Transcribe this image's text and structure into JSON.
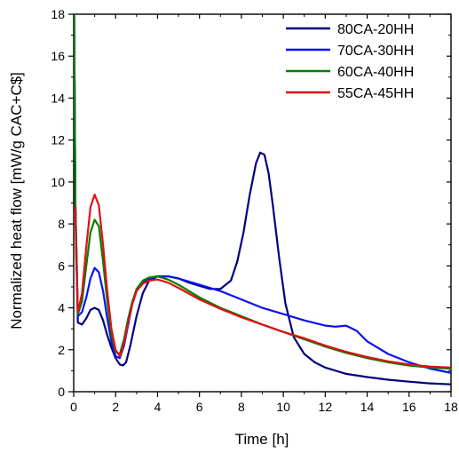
{
  "chart_data": {
    "type": "line",
    "title": "",
    "xlabel": "Time [h]",
    "ylabel": "Normalized heat flow [mW/g CAC+C$]",
    "xlim": [
      0,
      18
    ],
    "ylim": [
      0,
      18
    ],
    "xticks": [
      "0",
      "2",
      "4",
      "6",
      "8",
      "10",
      "12",
      "14",
      "16",
      "18"
    ],
    "yticks": [
      "0",
      "2",
      "4",
      "6",
      "8",
      "10",
      "12",
      "14",
      "16",
      "18"
    ],
    "grid": false,
    "legend_position": "top-right",
    "series": [
      {
        "name": "80CA-20HH",
        "color": "#00007f",
        "x": [
          0.02,
          0.08,
          0.2,
          0.4,
          0.6,
          0.8,
          1.0,
          1.2,
          1.4,
          1.6,
          1.8,
          2.0,
          2.2,
          2.35,
          2.5,
          2.7,
          3.0,
          3.3,
          3.6,
          4.0,
          4.5,
          5.0,
          5.5,
          6.0,
          6.5,
          7.0,
          7.5,
          7.8,
          8.1,
          8.4,
          8.7,
          8.9,
          9.1,
          9.3,
          9.5,
          9.8,
          10.1,
          10.5,
          11.0,
          11.5,
          12.0,
          13.0,
          14.0,
          15.0,
          16.0,
          17.0,
          18.0
        ],
        "y": [
          18.0,
          9.0,
          3.3,
          3.2,
          3.5,
          3.9,
          4.0,
          3.9,
          3.4,
          2.7,
          2.1,
          1.6,
          1.3,
          1.25,
          1.4,
          2.2,
          3.6,
          4.7,
          5.3,
          5.5,
          5.5,
          5.4,
          5.2,
          5.05,
          4.9,
          4.9,
          5.3,
          6.2,
          7.6,
          9.4,
          10.9,
          11.4,
          11.3,
          10.4,
          8.9,
          6.4,
          4.2,
          2.6,
          1.8,
          1.4,
          1.15,
          0.85,
          0.7,
          0.57,
          0.48,
          0.4,
          0.35
        ]
      },
      {
        "name": "70CA-30HH",
        "color": "#0a12f0",
        "x": [
          0.02,
          0.08,
          0.2,
          0.4,
          0.6,
          0.8,
          1.0,
          1.2,
          1.4,
          1.6,
          1.8,
          2.0,
          2.2,
          2.4,
          2.6,
          2.8,
          3.0,
          3.3,
          3.6,
          4.0,
          4.5,
          5.0,
          6.0,
          7.0,
          8.0,
          9.0,
          10.0,
          11.0,
          12.0,
          12.5,
          13.0,
          13.5,
          14.0,
          15.0,
          16.0,
          17.0,
          18.0
        ],
        "y": [
          18.0,
          9.0,
          3.6,
          3.8,
          4.5,
          5.4,
          5.9,
          5.7,
          4.8,
          3.5,
          2.4,
          1.7,
          1.6,
          2.2,
          3.2,
          4.2,
          4.8,
          5.2,
          5.4,
          5.5,
          5.5,
          5.4,
          5.1,
          4.8,
          4.4,
          4.0,
          3.7,
          3.4,
          3.15,
          3.1,
          3.15,
          2.9,
          2.4,
          1.8,
          1.4,
          1.1,
          0.9
        ]
      },
      {
        "name": "60CA-40HH",
        "color": "#008000",
        "x": [
          0.02,
          0.08,
          0.2,
          0.4,
          0.6,
          0.8,
          1.0,
          1.2,
          1.4,
          1.6,
          1.8,
          2.0,
          2.2,
          2.4,
          2.6,
          2.8,
          3.0,
          3.3,
          3.6,
          4.0,
          4.5,
          5.0,
          6.0,
          7.0,
          8.0,
          9.0,
          10.0,
          11.0,
          12.0,
          13.0,
          14.0,
          15.0,
          16.0,
          17.0,
          18.0
        ],
        "y": [
          18.0,
          9.0,
          3.7,
          4.3,
          6.0,
          7.6,
          8.2,
          7.9,
          6.2,
          4.3,
          2.7,
          1.9,
          1.8,
          2.5,
          3.5,
          4.3,
          4.9,
          5.3,
          5.45,
          5.5,
          5.35,
          5.1,
          4.5,
          4.0,
          3.6,
          3.2,
          2.85,
          2.5,
          2.15,
          1.85,
          1.6,
          1.4,
          1.25,
          1.15,
          1.1
        ]
      },
      {
        "name": "55CA-45HH",
        "color": "#e01010",
        "x": [
          0.08,
          0.12,
          0.2,
          0.4,
          0.6,
          0.8,
          1.0,
          1.2,
          1.4,
          1.6,
          1.8,
          2.0,
          2.2,
          2.4,
          2.6,
          2.8,
          3.0,
          3.3,
          3.6,
          4.0,
          4.5,
          5.0,
          6.0,
          7.0,
          8.0,
          9.0,
          10.0,
          11.0,
          12.0,
          13.0,
          14.0,
          15.0,
          16.0,
          17.0,
          18.0
        ],
        "y": [
          8.8,
          6.5,
          3.8,
          4.7,
          6.9,
          8.8,
          9.4,
          8.9,
          7.0,
          4.8,
          3.0,
          2.0,
          1.7,
          2.3,
          3.3,
          4.2,
          4.8,
          5.15,
          5.3,
          5.35,
          5.2,
          4.95,
          4.4,
          3.95,
          3.55,
          3.2,
          2.85,
          2.55,
          2.2,
          1.9,
          1.65,
          1.45,
          1.3,
          1.2,
          1.15
        ]
      }
    ]
  }
}
